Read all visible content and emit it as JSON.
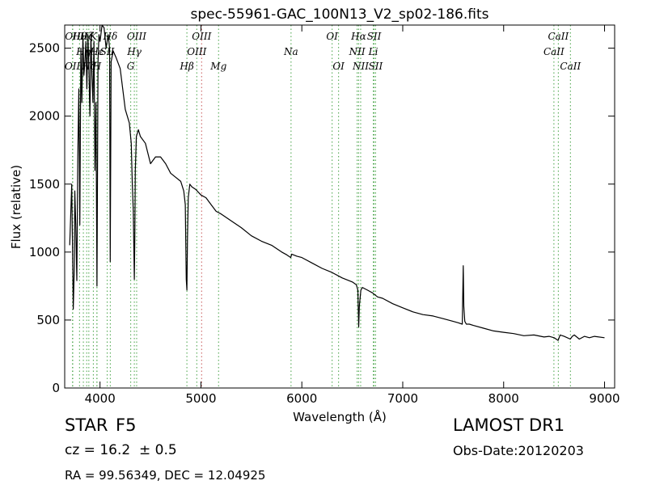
{
  "chart_data": {
    "type": "line",
    "title": "spec-55961-GAC_100N13_V2_sp02-186.fits",
    "xlabel": "Wavelength (Å)",
    "ylabel": "Flux (relative)",
    "xlim": [
      3650,
      9100
    ],
    "ylim": [
      0,
      2670
    ],
    "xticks": [
      4000,
      5000,
      6000,
      7000,
      8000,
      9000
    ],
    "yticks": [
      0,
      500,
      1000,
      1500,
      2000,
      2500
    ],
    "grid": false,
    "series": [
      {
        "color": "#000000",
        "x": [
          3700,
          3720,
          3735,
          3745,
          3750,
          3760,
          3770,
          3780,
          3790,
          3800,
          3810,
          3820,
          3830,
          3840,
          3850,
          3860,
          3870,
          3880,
          3890,
          3900,
          3910,
          3920,
          3930,
          3940,
          3950,
          3960,
          3970,
          3980,
          3990,
          4000,
          4020,
          4040,
          4060,
          4080,
          4095,
          4101,
          4110,
          4130,
          4160,
          4200,
          4250,
          4290,
          4310,
          4320,
          4330,
          4340,
          4345,
          4350,
          4360,
          4380,
          4400,
          4450,
          4500,
          4550,
          4600,
          4650,
          4700,
          4750,
          4800,
          4830,
          4845,
          4855,
          4861,
          4867,
          4875,
          4890,
          4910,
          4950,
          5000,
          5050,
          5100,
          5150,
          5200,
          5300,
          5400,
          5500,
          5600,
          5700,
          5800,
          5850,
          5890,
          5900,
          5950,
          6000,
          6100,
          6200,
          6300,
          6400,
          6500,
          6540,
          6555,
          6563,
          6570,
          6585,
          6600,
          6650,
          6700,
          6750,
          6800,
          6900,
          7000,
          7100,
          7200,
          7300,
          7400,
          7500,
          7550,
          7590,
          7600,
          7605,
          7615,
          7630,
          7660,
          7700,
          7800,
          7900,
          8000,
          8100,
          8200,
          8300,
          8400,
          8450,
          8500,
          8540,
          8560,
          8600,
          8660,
          8680,
          8700,
          8750,
          8800,
          8850,
          8900,
          9000
        ],
        "y": [
          1050,
          1500,
          580,
          900,
          1450,
          1200,
          790,
          1700,
          2200,
          1200,
          2500,
          2100,
          2600,
          2300,
          2400,
          2550,
          2200,
          2600,
          2350,
          2000,
          2600,
          2300,
          2100,
          2550,
          1600,
          2100,
          750,
          2400,
          2600,
          2550,
          2700,
          2650,
          2500,
          2600,
          2500,
          930,
          2400,
          2480,
          2430,
          2350,
          2050,
          1950,
          1800,
          1500,
          1300,
          800,
          1100,
          1600,
          1850,
          1900,
          1850,
          1800,
          1650,
          1700,
          1700,
          1650,
          1580,
          1550,
          1520,
          1450,
          1350,
          800,
          720,
          1100,
          1400,
          1500,
          1480,
          1460,
          1420,
          1400,
          1350,
          1300,
          1280,
          1230,
          1180,
          1120,
          1080,
          1050,
          1000,
          980,
          960,
          985,
          970,
          960,
          920,
          880,
          850,
          810,
          780,
          760,
          720,
          450,
          600,
          720,
          740,
          720,
          700,
          670,
          660,
          620,
          590,
          560,
          540,
          530,
          510,
          490,
          480,
          470,
          900,
          600,
          490,
          470,
          470,
          460,
          440,
          420,
          410,
          400,
          385,
          390,
          375,
          380,
          370,
          350,
          390,
          380,
          360,
          380,
          390,
          360,
          380,
          370,
          380,
          370
        ]
      }
    ],
    "lines": [
      {
        "x": 3727,
        "label": "OII",
        "style": "bl",
        "hue": "green"
      },
      {
        "x": 3730,
        "label": "OII",
        "style": "tl",
        "hue": "green"
      },
      {
        "x": 3797,
        "label": "Hθ",
        "style": "tl",
        "hue": "green"
      },
      {
        "x": 3835,
        "label": "Hη",
        "style": "ml",
        "hue": "green"
      },
      {
        "x": 3868,
        "label": "Hζ",
        "style": "tl",
        "hue": "green"
      },
      {
        "x": 3889,
        "label": "Hζ",
        "style": "bl",
        "hue": "green"
      },
      {
        "x": 3934,
        "label": "K",
        "style": "tl",
        "hue": "green"
      },
      {
        "x": 3969,
        "label": "Hε",
        "style": "ml",
        "hue": "green"
      },
      {
        "x": 3970,
        "label": "H",
        "style": "bl",
        "hue": "green"
      },
      {
        "x": 4071,
        "label": "SII",
        "style": "ml",
        "hue": "green"
      },
      {
        "x": 4102,
        "label": "Hδ",
        "style": "tl",
        "hue": "green"
      },
      {
        "x": 4304,
        "label": "G",
        "style": "bl",
        "hue": "green"
      },
      {
        "x": 4340,
        "label": "Hγ",
        "style": "ml",
        "hue": "green"
      },
      {
        "x": 4363,
        "label": "OIII",
        "style": "tl",
        "hue": "green"
      },
      {
        "x": 4861,
        "label": "Hβ",
        "style": "bl",
        "hue": "green"
      },
      {
        "x": 4959,
        "label": "OIII",
        "style": "ml",
        "hue": "green"
      },
      {
        "x": 5007,
        "label": "OIII",
        "style": "tl",
        "hue": "red"
      },
      {
        "x": 5175,
        "label": "Mg",
        "style": "bl",
        "hue": "green"
      },
      {
        "x": 5893,
        "label": "Na",
        "style": "ml",
        "hue": "green"
      },
      {
        "x": 6300,
        "label": "OI",
        "style": "tl",
        "hue": "green"
      },
      {
        "x": 6364,
        "label": "OI",
        "style": "bl",
        "hue": "green"
      },
      {
        "x": 6548,
        "label": "NII",
        "style": "ml",
        "hue": "green"
      },
      {
        "x": 6563,
        "label": "Hα",
        "style": "tl",
        "hue": "green"
      },
      {
        "x": 6583,
        "label": "NII",
        "style": "bl",
        "hue": "green"
      },
      {
        "x": 6708,
        "label": "Li",
        "style": "ml",
        "hue": "green"
      },
      {
        "x": 6716,
        "label": "SII",
        "style": "tl",
        "hue": "green"
      },
      {
        "x": 6731,
        "label": "SII",
        "style": "bl",
        "hue": "green"
      },
      {
        "x": 8498,
        "label": "CaII",
        "style": "ml",
        "hue": "green"
      },
      {
        "x": 8542,
        "label": "CaII",
        "style": "tl",
        "hue": "green"
      },
      {
        "x": 8662,
        "label": "CaII",
        "style": "bl",
        "hue": "green"
      }
    ],
    "line_colors": {
      "green": "#55aa55",
      "red": "#cc6666"
    }
  },
  "info": {
    "object_class": "STAR",
    "subclass": "F5",
    "redshift": "cz = 16.2  ± 0.5",
    "coordinates": "RA = 99.56349, DEC = 12.04925",
    "survey": "LAMOST DR1",
    "obs_date": "Obs-Date:20120203"
  }
}
